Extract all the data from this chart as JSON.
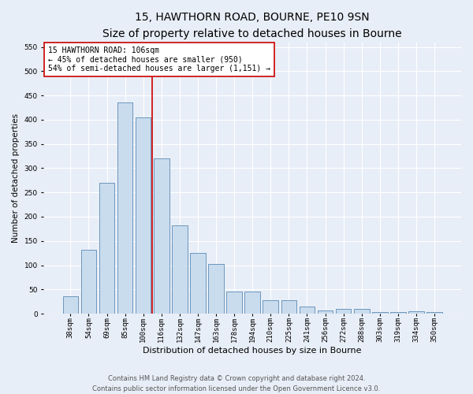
{
  "title": "15, HAWTHORN ROAD, BOURNE, PE10 9SN",
  "subtitle": "Size of property relative to detached houses in Bourne",
  "xlabel": "Distribution of detached houses by size in Bourne",
  "ylabel": "Number of detached properties",
  "categories": [
    "38sqm",
    "54sqm",
    "69sqm",
    "85sqm",
    "100sqm",
    "116sqm",
    "132sqm",
    "147sqm",
    "163sqm",
    "178sqm",
    "194sqm",
    "210sqm",
    "225sqm",
    "241sqm",
    "256sqm",
    "272sqm",
    "288sqm",
    "303sqm",
    "319sqm",
    "334sqm",
    "350sqm"
  ],
  "values": [
    35,
    132,
    270,
    435,
    405,
    320,
    182,
    125,
    103,
    46,
    45,
    28,
    27,
    14,
    6,
    9,
    10,
    4,
    4,
    5,
    4
  ],
  "bar_color": "#c9dcee",
  "bar_edge_color": "#5a8ab5",
  "vline_index": 4,
  "vline_color": "#cc0000",
  "annotation_line1": "15 HAWTHORN ROAD: 106sqm",
  "annotation_line2": "← 45% of detached houses are smaller (950)",
  "annotation_line3": "54% of semi-detached houses are larger (1,151) →",
  "annotation_box_facecolor": "#ffffff",
  "annotation_box_edgecolor": "#cc0000",
  "ylim": [
    0,
    560
  ],
  "yticks": [
    0,
    50,
    100,
    150,
    200,
    250,
    300,
    350,
    400,
    450,
    500,
    550
  ],
  "bg_color": "#e8eef7",
  "title_fontsize": 10,
  "subtitle_fontsize": 8.5,
  "ylabel_fontsize": 7.5,
  "xlabel_fontsize": 8,
  "tick_fontsize": 6.5,
  "annotation_fontsize": 7,
  "footer_fontsize": 6,
  "footer_line1": "Contains HM Land Registry data © Crown copyright and database right 2024.",
  "footer_line2": "Contains public sector information licensed under the Open Government Licence v3.0."
}
